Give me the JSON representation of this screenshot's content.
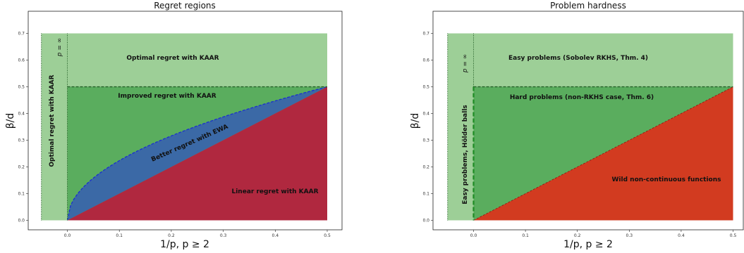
{
  "chart_data": [
    {
      "type": "area",
      "title": "Regret regions",
      "xlabel": "1/p, p ≥ 2",
      "ylabel": "β/d",
      "xlim": [
        -0.06,
        0.51
      ],
      "ylim": [
        -0.02,
        0.72
      ],
      "x_ticks": [
        "0.0",
        "0.1",
        "0.2",
        "0.3",
        "0.4",
        "0.5"
      ],
      "y_ticks": [
        "0.0",
        "0.1",
        "0.2",
        "0.3",
        "0.4",
        "0.5",
        "0.6",
        "0.7"
      ],
      "colors": {
        "light_green": "#9dcf97",
        "green": "#5aad5e",
        "blue": "#3b69a6",
        "red": "#b0283f"
      },
      "regions": [
        {
          "label": "Optimal regret with KAAR",
          "x_range": [
            0.0,
            0.5
          ],
          "y_range": [
            0.5,
            0.7
          ],
          "color": "light_green"
        },
        {
          "label": "Optimal regret with KAAR",
          "x_range": [
            -0.05,
            0.0
          ],
          "y_range": [
            0.0,
            0.7
          ],
          "color": "light_green",
          "vertical": true
        },
        {
          "label": "Improved regret with KAAR",
          "boundary_below": "sqrt(x/2)",
          "y_max": 0.5,
          "color": "green"
        },
        {
          "label": "Better regret with EWA",
          "between": [
            "x",
            "sqrt(x/2)"
          ],
          "color": "blue"
        },
        {
          "label": "Linear regret with KAAR",
          "boundary_above": "x",
          "color": "red"
        }
      ],
      "p_inf_label": "p = ∞"
    },
    {
      "type": "area",
      "title": "Problem hardness",
      "xlabel": "1/p, p ≥ 2",
      "ylabel": "β/d",
      "xlim": [
        -0.06,
        0.51
      ],
      "ylim": [
        -0.02,
        0.72
      ],
      "x_ticks": [
        "0.0",
        "0.1",
        "0.2",
        "0.3",
        "0.4",
        "0.5"
      ],
      "y_ticks": [
        "0.0",
        "0.1",
        "0.2",
        "0.3",
        "0.4",
        "0.5",
        "0.6",
        "0.7"
      ],
      "colors": {
        "light_green": "#9dcf97",
        "green": "#5aad5e",
        "red": "#d23b20"
      },
      "regions": [
        {
          "label": "Easy problems (Sobolev RKHS, Thm. 4)",
          "x_range": [
            0.0,
            0.5
          ],
          "y_range": [
            0.5,
            0.7
          ],
          "color": "light_green"
        },
        {
          "label": "Easy problems, Hölder balls",
          "x_range": [
            -0.05,
            0.0
          ],
          "y_range": [
            0.0,
            0.7
          ],
          "color": "light_green",
          "vertical": true
        },
        {
          "label": "Hard problems (non-RKHS case, Thm. 6)",
          "boundary_below": "x",
          "y_max": 0.5,
          "color": "green"
        },
        {
          "label": "Wild non-continuous functions",
          "boundary_above": "x",
          "color": "red"
        }
      ],
      "p_inf_label": "p = ∞"
    }
  ]
}
